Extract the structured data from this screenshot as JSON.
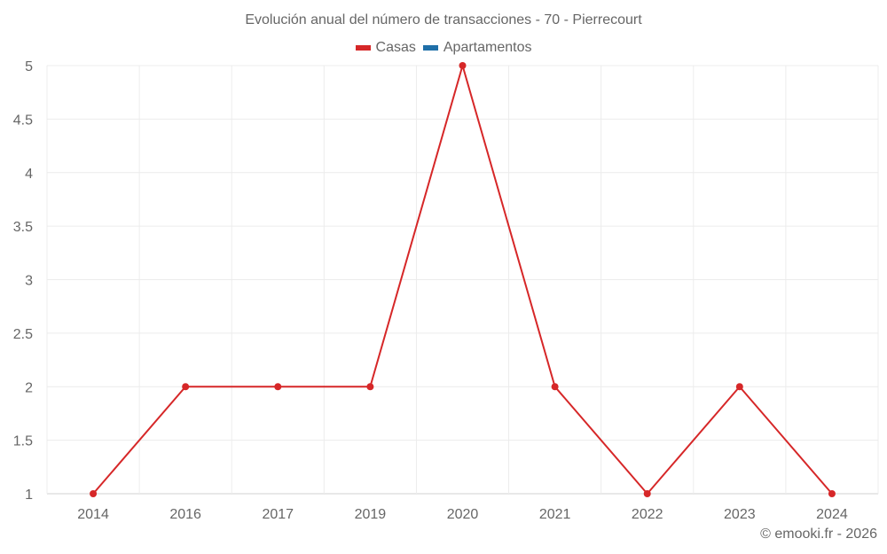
{
  "chart_data": {
    "type": "line",
    "title": "Evolución anual del número de transacciones - 70 - Pierrecourt",
    "xlabel": "",
    "ylabel": "",
    "categories": [
      "2014",
      "2016",
      "2017",
      "2019",
      "2020",
      "2021",
      "2022",
      "2023",
      "2024"
    ],
    "series": [
      {
        "name": "Casas",
        "color": "#d62728",
        "values": [
          1,
          2,
          2,
          2,
          5,
          2,
          1,
          2,
          1
        ]
      },
      {
        "name": "Apartamentos",
        "color": "#1f6fa8",
        "values": []
      }
    ],
    "ylim": [
      1,
      5
    ],
    "yticks": [
      "1",
      "1.5",
      "2",
      "2.5",
      "3",
      "3.5",
      "4",
      "4.5",
      "5"
    ],
    "grid": true,
    "legend_position": "top"
  },
  "legend": [
    {
      "label": "Casas",
      "color": "#d62728"
    },
    {
      "label": "Apartamentos",
      "color": "#1f6fa8"
    }
  ],
  "credit": "© emooki.fr - 2026"
}
